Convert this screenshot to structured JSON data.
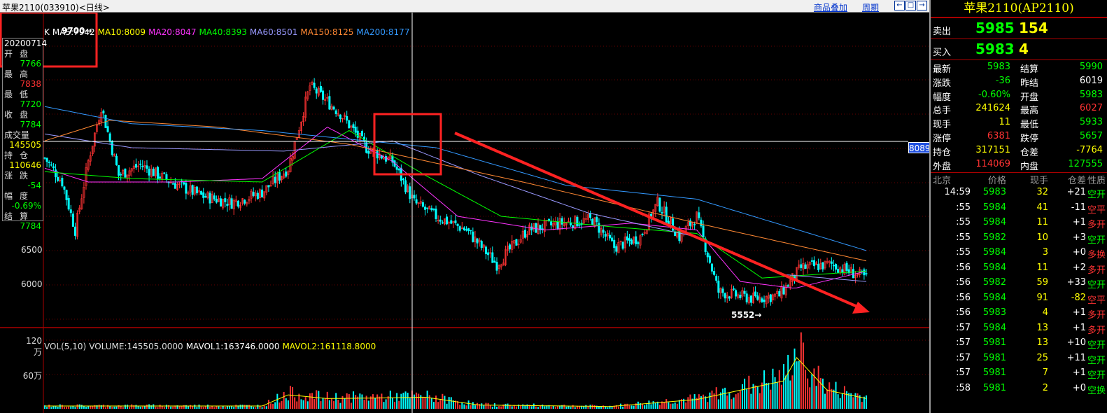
{
  "window": {
    "title": "苹果2110(033910)<日线>",
    "overlay_link": "商品叠加",
    "period_link": "周期",
    "nav_buttons": [
      "←",
      "□",
      "→"
    ]
  },
  "ma_legend": [
    {
      "label": "K",
      "color": "#ffffff"
    },
    {
      "label": "MA5:7942",
      "color": "#ffffff"
    },
    {
      "label": "MA10:8009",
      "color": "#ffff00"
    },
    {
      "label": "MA20:8047",
      "color": "#ff33ff"
    },
    {
      "label": "MA40:8393",
      "color": "#00ff00"
    },
    {
      "label": "MA60:8501",
      "color": "#9999ff"
    },
    {
      "label": "MA150:8125",
      "color": "#ff8833"
    },
    {
      "label": "MA200:8177",
      "color": "#3399ff"
    }
  ],
  "info_box": {
    "date": "20200714",
    "rows": [
      {
        "label": "开盘",
        "value": "7766",
        "color": "#00ff00"
      },
      {
        "label": "最高",
        "value": "7838",
        "color": "#ff3333"
      },
      {
        "label": "最低",
        "value": "7720",
        "color": "#00ff00"
      },
      {
        "label": "收盘",
        "value": "7784",
        "color": "#00ff00"
      },
      {
        "label": "成交量",
        "value": "145505",
        "color": "#ffff00"
      },
      {
        "label": "持仓",
        "value": "110646",
        "color": "#ffff00"
      },
      {
        "label": "涨跌",
        "value": "-54",
        "color": "#00ff00"
      },
      {
        "label": "幅度",
        "value": "-0.69%",
        "color": "#00ff00"
      },
      {
        "label": "结算",
        "value": "7784",
        "color": "#00ff00"
      }
    ]
  },
  "price_axis": [
    "7000",
    "6500",
    "6000"
  ],
  "volume_axis": [
    "120万",
    "60万"
  ],
  "cross_price": "8089",
  "annotations": {
    "high_label": "9700",
    "low_label": "5552"
  },
  "volume_legend": [
    {
      "label": "VOL(5,10)",
      "color": "#dddddd"
    },
    {
      "label": "VOLUME:145505.0000",
      "color": "#dddddd"
    },
    {
      "label": "MAVOL1:163746.0000",
      "color": "#ffffff"
    },
    {
      "label": "MAVOL2:161118.8000",
      "color": "#ffff00"
    }
  ],
  "quote": {
    "title": "苹果2110(AP2110)",
    "ask_label": "卖出",
    "ask_price": "5985",
    "ask_vol": "154",
    "bid_label": "买入",
    "bid_price": "5983",
    "bid_vol": "4",
    "stats": [
      {
        "l1": "最新",
        "v1": "5983",
        "c1": "#00ff00",
        "l2": "结算",
        "v2": "5990",
        "c2": "#00ff00"
      },
      {
        "l1": "涨跌",
        "v1": "-36",
        "c1": "#00ff00",
        "l2": "昨结",
        "v2": "6019",
        "c2": "#ffffff"
      },
      {
        "l1": "幅度",
        "v1": "-0.60%",
        "c1": "#00ff00",
        "l2": "开盘",
        "v2": "5983",
        "c2": "#00ff00"
      },
      {
        "l1": "总手",
        "v1": "241624",
        "c1": "#ffff00",
        "l2": "最高",
        "v2": "6027",
        "c2": "#ff3333"
      },
      {
        "l1": "现手",
        "v1": "11",
        "c1": "#ffff00",
        "l2": "最低",
        "v2": "5933",
        "c2": "#00ff00"
      },
      {
        "l1": "涨停",
        "v1": "6381",
        "c1": "#ff3333",
        "l2": "跌停",
        "v2": "5657",
        "c2": "#00ff00"
      },
      {
        "l1": "持仓",
        "v1": "317151",
        "c1": "#ffff00",
        "l2": "仓差",
        "v2": "-7764",
        "c2": "#ffff00"
      },
      {
        "l1": "外盘",
        "v1": "114069",
        "c1": "#ff3333",
        "l2": "内盘",
        "v2": "127555",
        "c2": "#00ff00"
      }
    ],
    "tick_headers": [
      "北京",
      "价格",
      "现手",
      "仓差",
      "性质"
    ],
    "ticks": [
      {
        "time": "14:59",
        "price": "5983",
        "vol": "32",
        "oi": "+21",
        "nature": "空开",
        "oic": "#ffffff",
        "nc": "#00ff00"
      },
      {
        "time": ":55",
        "price": "5984",
        "vol": "41",
        "oi": "-11",
        "nature": "空平",
        "oic": "#ffffff",
        "nc": "#ff3333"
      },
      {
        "time": ":55",
        "price": "5984",
        "vol": "11",
        "oi": "+1",
        "nature": "多开",
        "oic": "#ffffff",
        "nc": "#ff3333"
      },
      {
        "time": ":55",
        "price": "5982",
        "vol": "10",
        "oi": "+3",
        "nature": "空开",
        "oic": "#ffffff",
        "nc": "#00ff00"
      },
      {
        "time": ":55",
        "price": "5984",
        "vol": "3",
        "oi": "+0",
        "nature": "多换",
        "oic": "#ffffff",
        "nc": "#ff3333"
      },
      {
        "time": ":56",
        "price": "5984",
        "vol": "11",
        "oi": "+2",
        "nature": "多开",
        "oic": "#ffffff",
        "nc": "#ff3333"
      },
      {
        "time": ":56",
        "price": "5982",
        "vol": "59",
        "oi": "+33",
        "nature": "空开",
        "oic": "#ffffff",
        "nc": "#00ff00"
      },
      {
        "time": ":56",
        "price": "5984",
        "vol": "91",
        "oi": "-82",
        "nature": "空平",
        "oic": "#ffff00",
        "nc": "#ff3333"
      },
      {
        "time": ":56",
        "price": "5983",
        "vol": "4",
        "oi": "+1",
        "nature": "多开",
        "oic": "#ffffff",
        "nc": "#ff3333"
      },
      {
        "time": ":57",
        "price": "5984",
        "vol": "13",
        "oi": "+1",
        "nature": "多开",
        "oic": "#ffffff",
        "nc": "#ff3333"
      },
      {
        "time": ":57",
        "price": "5981",
        "vol": "13",
        "oi": "+10",
        "nature": "空开",
        "oic": "#ffffff",
        "nc": "#00ff00"
      },
      {
        "time": ":57",
        "price": "5981",
        "vol": "25",
        "oi": "+11",
        "nature": "空开",
        "oic": "#ffffff",
        "nc": "#00ff00"
      },
      {
        "time": ":57",
        "price": "5981",
        "vol": "7",
        "oi": "+1",
        "nature": "空开",
        "oic": "#ffffff",
        "nc": "#00ff00"
      },
      {
        "time": ":58",
        "price": "5981",
        "vol": "2",
        "oi": "+0",
        "nature": "空换",
        "oic": "#ffffff",
        "nc": "#00ff00"
      }
    ]
  },
  "chart_data": {
    "type": "line",
    "title": "苹果2110(033910)<日线>",
    "xlabel": "",
    "ylabel": "",
    "ylim": [
      5450,
      9750
    ],
    "y_ticks": [
      7000,
      6500,
      6000
    ],
    "price_keypoints": [
      {
        "i": 0,
        "v": 7850
      },
      {
        "i": 8,
        "v": 7500
      },
      {
        "i": 14,
        "v": 6800
      },
      {
        "i": 20,
        "v": 7800
      },
      {
        "i": 26,
        "v": 8600
      },
      {
        "i": 34,
        "v": 7600
      },
      {
        "i": 44,
        "v": 7750
      },
      {
        "i": 58,
        "v": 7500
      },
      {
        "i": 72,
        "v": 7300
      },
      {
        "i": 86,
        "v": 7200
      },
      {
        "i": 100,
        "v": 7350
      },
      {
        "i": 112,
        "v": 7700
      },
      {
        "i": 122,
        "v": 8900
      },
      {
        "i": 136,
        "v": 8500
      },
      {
        "i": 148,
        "v": 8000
      },
      {
        "i": 160,
        "v": 7800
      },
      {
        "i": 170,
        "v": 7200
      },
      {
        "i": 180,
        "v": 7000
      },
      {
        "i": 194,
        "v": 6800
      },
      {
        "i": 208,
        "v": 6300
      },
      {
        "i": 222,
        "v": 6800
      },
      {
        "i": 238,
        "v": 6900
      },
      {
        "i": 252,
        "v": 6950
      },
      {
        "i": 262,
        "v": 6550
      },
      {
        "i": 274,
        "v": 6700
      },
      {
        "i": 282,
        "v": 7200
      },
      {
        "i": 292,
        "v": 6700
      },
      {
        "i": 300,
        "v": 7000
      },
      {
        "i": 310,
        "v": 5900
      },
      {
        "i": 326,
        "v": 5800
      },
      {
        "i": 338,
        "v": 5850
      },
      {
        "i": 348,
        "v": 6250
      },
      {
        "i": 362,
        "v": 6300
      },
      {
        "i": 378,
        "v": 6100
      }
    ],
    "ma_series": [
      {
        "name": "MA20",
        "color": "#ff33ff",
        "points": [
          {
            "i": 0,
            "v": 7700
          },
          {
            "i": 20,
            "v": 7500
          },
          {
            "i": 60,
            "v": 7500
          },
          {
            "i": 100,
            "v": 7550
          },
          {
            "i": 130,
            "v": 8300
          },
          {
            "i": 160,
            "v": 7800
          },
          {
            "i": 190,
            "v": 7000
          },
          {
            "i": 230,
            "v": 6800
          },
          {
            "i": 270,
            "v": 6900
          },
          {
            "i": 300,
            "v": 6800
          },
          {
            "i": 320,
            "v": 6050
          },
          {
            "i": 345,
            "v": 5950
          },
          {
            "i": 378,
            "v": 6200
          }
        ]
      },
      {
        "name": "MA40",
        "color": "#00ff00",
        "points": [
          {
            "i": 0,
            "v": 7650
          },
          {
            "i": 40,
            "v": 7550
          },
          {
            "i": 100,
            "v": 7500
          },
          {
            "i": 140,
            "v": 8250
          },
          {
            "i": 175,
            "v": 7600
          },
          {
            "i": 210,
            "v": 7000
          },
          {
            "i": 260,
            "v": 6850
          },
          {
            "i": 300,
            "v": 6750
          },
          {
            "i": 330,
            "v": 6100
          },
          {
            "i": 378,
            "v": 6200
          }
        ]
      },
      {
        "name": "MA60",
        "color": "#9999ff",
        "points": [
          {
            "i": 0,
            "v": 8200
          },
          {
            "i": 40,
            "v": 8000
          },
          {
            "i": 110,
            "v": 7950
          },
          {
            "i": 160,
            "v": 8100
          },
          {
            "i": 200,
            "v": 7600
          },
          {
            "i": 250,
            "v": 7050
          },
          {
            "i": 300,
            "v": 6700
          },
          {
            "i": 340,
            "v": 6150
          },
          {
            "i": 378,
            "v": 6050
          }
        ]
      },
      {
        "name": "MA150",
        "color": "#ff8833",
        "points": [
          {
            "i": 0,
            "v": 8100
          },
          {
            "i": 30,
            "v": 8400
          },
          {
            "i": 80,
            "v": 8300
          },
          {
            "i": 140,
            "v": 8050
          },
          {
            "i": 220,
            "v": 7500
          },
          {
            "i": 300,
            "v": 6900
          },
          {
            "i": 378,
            "v": 6350
          }
        ]
      },
      {
        "name": "MA200",
        "color": "#3399ff",
        "points": [
          {
            "i": 0,
            "v": 8600
          },
          {
            "i": 40,
            "v": 8350
          },
          {
            "i": 100,
            "v": 8250
          },
          {
            "i": 180,
            "v": 8000
          },
          {
            "i": 240,
            "v": 7450
          },
          {
            "i": 300,
            "v": 7250
          },
          {
            "i": 378,
            "v": 6500
          }
        ]
      }
    ],
    "volume_keypoints": [
      {
        "i": 0,
        "v": 60000
      },
      {
        "i": 100,
        "v": 60000
      },
      {
        "i": 112,
        "v": 300000
      },
      {
        "i": 130,
        "v": 220000
      },
      {
        "i": 150,
        "v": 230000
      },
      {
        "i": 175,
        "v": 250000
      },
      {
        "i": 200,
        "v": 80000
      },
      {
        "i": 260,
        "v": 50000
      },
      {
        "i": 300,
        "v": 200000
      },
      {
        "i": 320,
        "v": 400000
      },
      {
        "i": 340,
        "v": 600000
      },
      {
        "i": 346,
        "v": 1100000
      },
      {
        "i": 360,
        "v": 400000
      },
      {
        "i": 378,
        "v": 220000
      }
    ],
    "volume_ylim": [
      0,
      1300000
    ],
    "bar_count": 379
  }
}
